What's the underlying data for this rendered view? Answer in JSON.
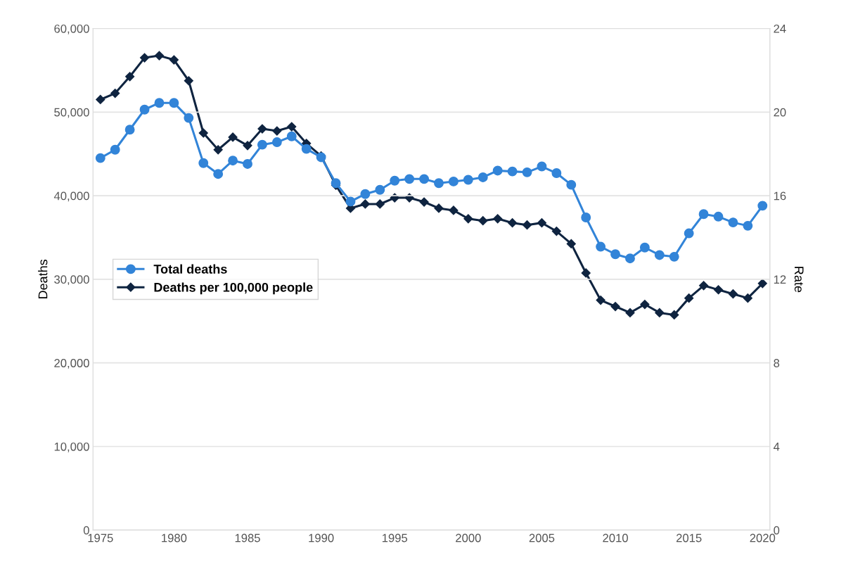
{
  "chart_data": {
    "type": "line",
    "xlabel": null,
    "ylabel": "Deaths",
    "y2label": "Rate",
    "x": [
      1975,
      1976,
      1977,
      1978,
      1979,
      1980,
      1981,
      1982,
      1983,
      1984,
      1985,
      1986,
      1987,
      1988,
      1989,
      1990,
      1991,
      1992,
      1993,
      1994,
      1995,
      1996,
      1997,
      1998,
      1999,
      2000,
      2001,
      2002,
      2003,
      2004,
      2005,
      2006,
      2007,
      2008,
      2009,
      2010,
      2011,
      2012,
      2013,
      2014,
      2015,
      2016,
      2017,
      2018,
      2019,
      2020
    ],
    "series": [
      {
        "name": "Total deaths",
        "color": "#3284d8",
        "marker": "circle",
        "values": [
          44500,
          45500,
          47900,
          50300,
          51100,
          51100,
          49300,
          43900,
          42600,
          44200,
          43800,
          46100,
          46400,
          47100,
          45600,
          44600,
          41500,
          39300,
          40200,
          40700,
          41800,
          42000,
          42000,
          41500,
          41700,
          41900,
          42200,
          43000,
          42900,
          42800,
          43500,
          42700,
          41300,
          37400,
          33900,
          33000,
          32500,
          33800,
          32900,
          32700,
          35500,
          37800,
          37500,
          36800,
          36400,
          38800
        ]
      },
      {
        "name": "Deaths per 100,000 people",
        "color": "#0f2440",
        "marker": "diamond",
        "axis": "y2",
        "values": [
          20.6,
          20.9,
          21.7,
          22.6,
          22.7,
          22.5,
          21.5,
          19.0,
          18.2,
          18.8,
          18.4,
          19.2,
          19.1,
          19.3,
          18.5,
          17.9,
          16.5,
          15.4,
          15.6,
          15.6,
          15.9,
          15.9,
          15.7,
          15.4,
          15.3,
          14.9,
          14.8,
          14.9,
          14.7,
          14.6,
          14.7,
          14.3,
          13.7,
          12.3,
          11.0,
          10.7,
          10.4,
          10.8,
          10.4,
          10.3,
          11.1,
          11.7,
          11.5,
          11.3,
          11.1,
          11.8
        ]
      }
    ],
    "xlim": [
      1974.5,
      2020.5
    ],
    "xticks": [
      1975,
      1980,
      1985,
      1990,
      1995,
      2000,
      2005,
      2010,
      2015,
      2020
    ],
    "ylim": [
      0,
      60000
    ],
    "yticks": [
      {
        "value": 0,
        "label": "0"
      },
      {
        "value": 10000,
        "label": "10,000"
      },
      {
        "value": 20000,
        "label": "20,000"
      },
      {
        "value": 30000,
        "label": "30,000"
      },
      {
        "value": 40000,
        "label": "40,000"
      },
      {
        "value": 50000,
        "label": "50,000"
      },
      {
        "value": 60000,
        "label": "60,000"
      }
    ],
    "y2lim": [
      0,
      24
    ],
    "y2ticks": [
      0,
      4,
      8,
      12,
      16,
      20,
      24
    ],
    "grid": "y",
    "legend": "center left",
    "line_style": "solid"
  }
}
